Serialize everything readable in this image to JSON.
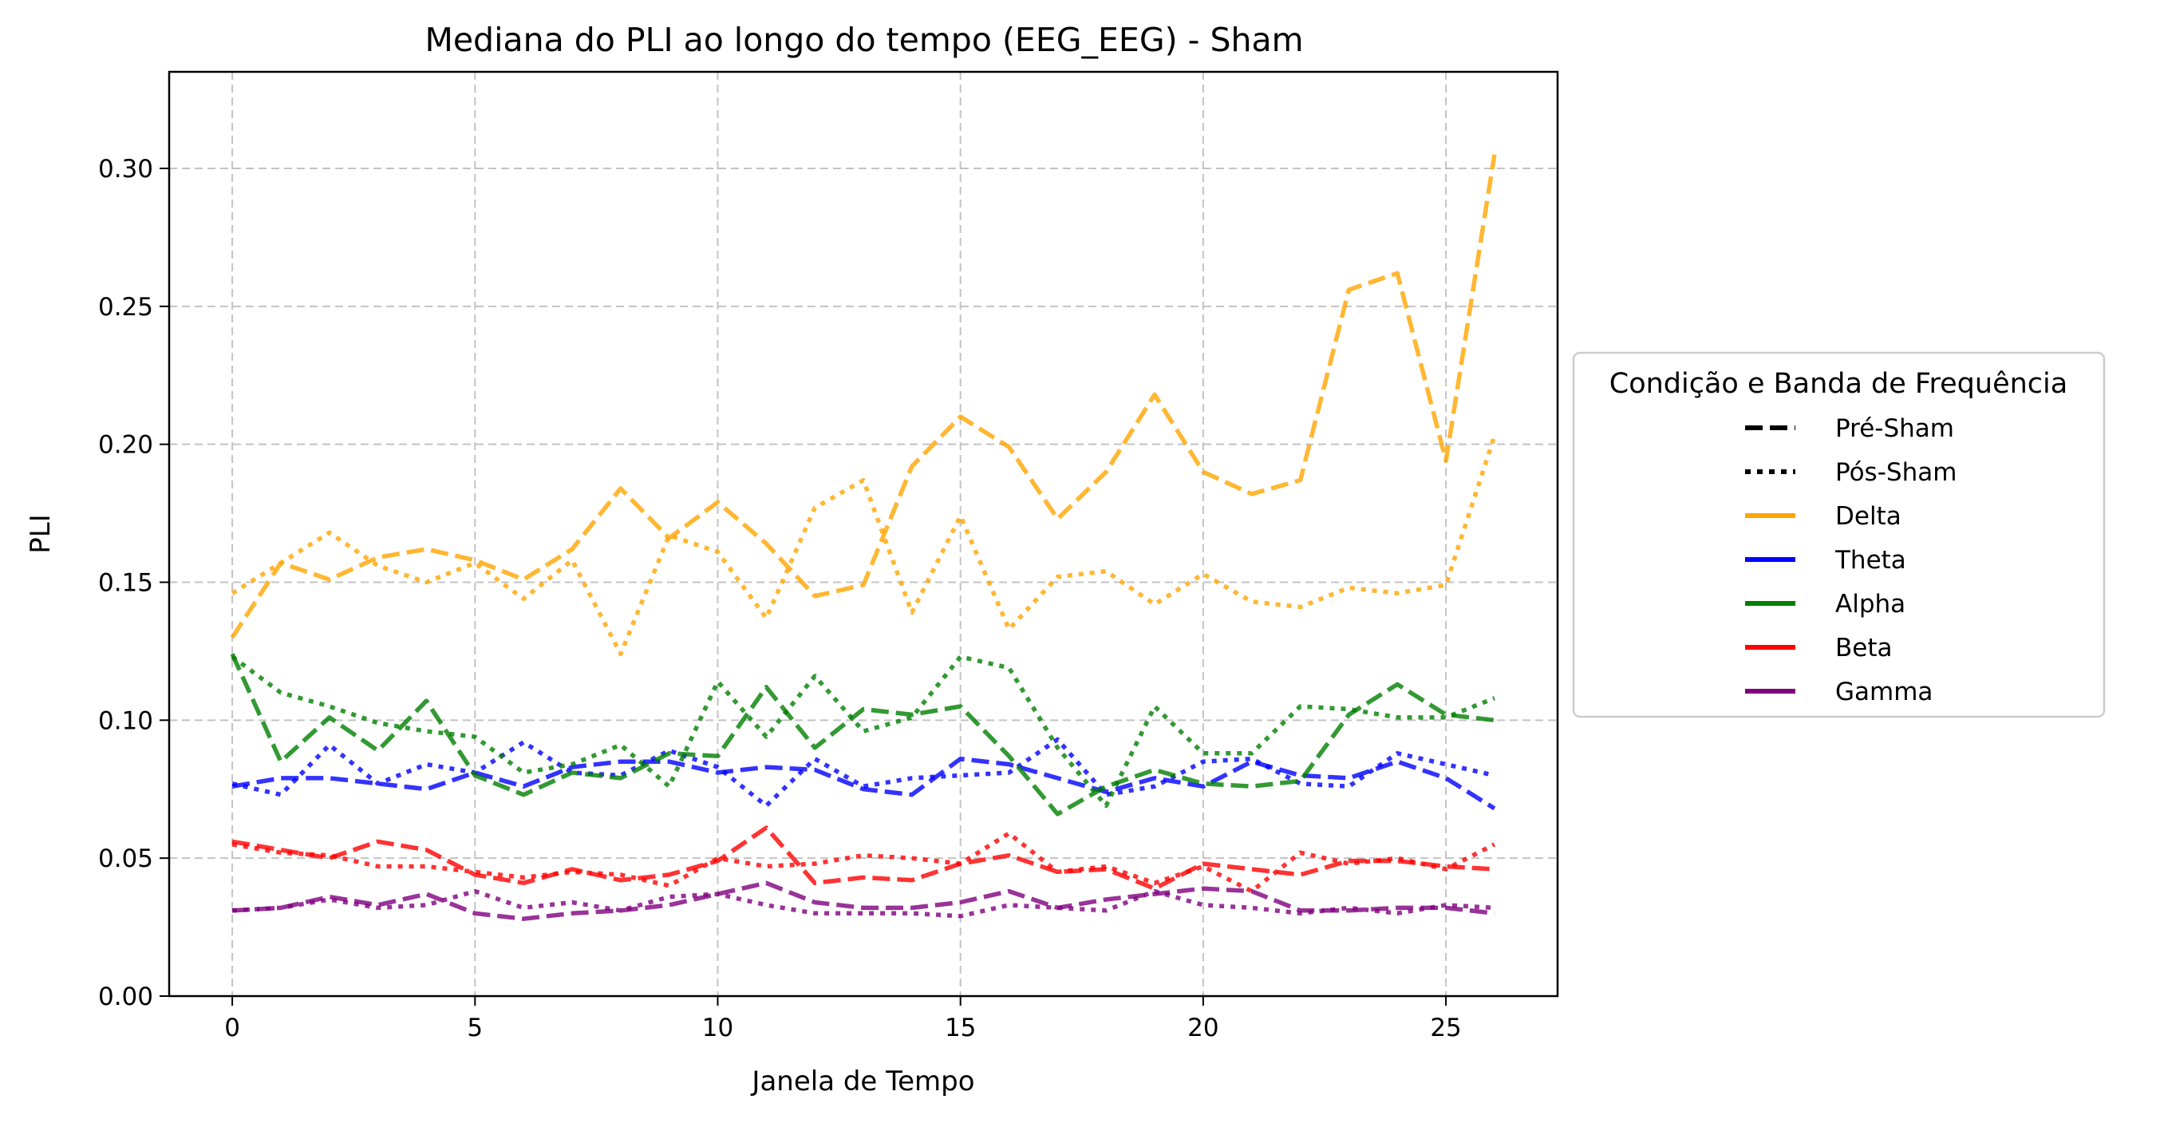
{
  "chart_data": {
    "type": "line",
    "title": "Mediana do PLI ao longo do tempo (EEG_EEG) - Sham",
    "xlabel": "Janela de Tempo",
    "ylabel": "PLI",
    "xlim": [
      -1.3,
      27.3
    ],
    "ylim": [
      0,
      0.335
    ],
    "xticks": [
      0,
      5,
      10,
      15,
      20,
      25
    ],
    "yticks": [
      0,
      0.05,
      0.1,
      0.15,
      0.2,
      0.25,
      0.3
    ],
    "ytick_labels": [
      "0.00",
      "0.05",
      "0.10",
      "0.15",
      "0.20",
      "0.25",
      "0.30"
    ],
    "grid": true,
    "legend": {
      "title": "Condição e Banda de Frequência",
      "placement": "outside-right",
      "entries": [
        {
          "label": "Pré-Sham",
          "style": "dashed",
          "color": "#000000"
        },
        {
          "label": "Pós-Sham",
          "style": "dotted",
          "color": "#000000"
        },
        {
          "label": "Delta",
          "style": "solid",
          "color": "#ffa500"
        },
        {
          "label": "Theta",
          "style": "solid",
          "color": "#0000ff"
        },
        {
          "label": "Alpha",
          "style": "solid",
          "color": "#008000"
        },
        {
          "label": "Beta",
          "style": "solid",
          "color": "#ff0000"
        },
        {
          "label": "Gamma",
          "style": "solid",
          "color": "#800080"
        }
      ]
    },
    "x": [
      0,
      1,
      2,
      3,
      4,
      5,
      6,
      7,
      8,
      9,
      10,
      11,
      12,
      13,
      14,
      15,
      16,
      17,
      18,
      19,
      20,
      21,
      22,
      23,
      24,
      25,
      26
    ],
    "series": [
      {
        "band": "Delta",
        "condition": "Pré-Sham",
        "style": "dashed",
        "color": "#ffa500",
        "values": [
          0.13,
          0.157,
          0.151,
          0.159,
          0.162,
          0.158,
          0.151,
          0.162,
          0.184,
          0.166,
          0.179,
          0.164,
          0.145,
          0.149,
          0.192,
          0.21,
          0.199,
          0.173,
          0.19,
          0.218,
          0.19,
          0.182,
          0.187,
          0.256,
          0.262,
          0.194,
          0.305
        ]
      },
      {
        "band": "Delta",
        "condition": "Pós-Sham",
        "style": "dotted",
        "color": "#ffa500",
        "values": [
          0.146,
          0.157,
          0.168,
          0.156,
          0.15,
          0.157,
          0.144,
          0.158,
          0.124,
          0.167,
          0.161,
          0.137,
          0.177,
          0.187,
          0.139,
          0.174,
          0.133,
          0.152,
          0.154,
          0.142,
          0.153,
          0.143,
          0.141,
          0.148,
          0.146,
          0.149,
          0.203
        ]
      },
      {
        "band": "Theta",
        "condition": "Pré-Sham",
        "style": "dashed",
        "color": "#0000ff",
        "values": [
          0.076,
          0.079,
          0.079,
          0.077,
          0.075,
          0.081,
          0.076,
          0.083,
          0.085,
          0.085,
          0.081,
          0.083,
          0.082,
          0.075,
          0.073,
          0.086,
          0.084,
          0.079,
          0.074,
          0.079,
          0.076,
          0.085,
          0.08,
          0.079,
          0.085,
          0.079,
          0.068
        ]
      },
      {
        "band": "Theta",
        "condition": "Pós-Sham",
        "style": "dotted",
        "color": "#0000ff",
        "values": [
          0.077,
          0.073,
          0.091,
          0.077,
          0.084,
          0.081,
          0.092,
          0.081,
          0.08,
          0.089,
          0.083,
          0.069,
          0.086,
          0.076,
          0.079,
          0.08,
          0.081,
          0.093,
          0.073,
          0.076,
          0.085,
          0.086,
          0.077,
          0.076,
          0.088,
          0.084,
          0.08
        ]
      },
      {
        "band": "Alpha",
        "condition": "Pré-Sham",
        "style": "dashed",
        "color": "#008000",
        "values": [
          0.124,
          0.085,
          0.101,
          0.089,
          0.107,
          0.08,
          0.073,
          0.081,
          0.079,
          0.088,
          0.087,
          0.112,
          0.09,
          0.104,
          0.102,
          0.105,
          0.087,
          0.066,
          0.076,
          0.082,
          0.077,
          0.076,
          0.078,
          0.102,
          0.113,
          0.102,
          0.1
        ]
      },
      {
        "band": "Alpha",
        "condition": "Pós-Sham",
        "style": "dotted",
        "color": "#008000",
        "values": [
          0.123,
          0.11,
          0.105,
          0.099,
          0.096,
          0.094,
          0.081,
          0.084,
          0.091,
          0.076,
          0.114,
          0.094,
          0.116,
          0.096,
          0.101,
          0.123,
          0.119,
          0.09,
          0.069,
          0.105,
          0.088,
          0.088,
          0.105,
          0.104,
          0.101,
          0.101,
          0.108
        ]
      },
      {
        "band": "Beta",
        "condition": "Pré-Sham",
        "style": "dashed",
        "color": "#ff0000",
        "values": [
          0.056,
          0.053,
          0.05,
          0.056,
          0.053,
          0.044,
          0.041,
          0.046,
          0.042,
          0.044,
          0.049,
          0.061,
          0.041,
          0.043,
          0.042,
          0.048,
          0.051,
          0.045,
          0.046,
          0.039,
          0.048,
          0.046,
          0.044,
          0.049,
          0.049,
          0.047,
          0.046
        ]
      },
      {
        "band": "Beta",
        "condition": "Pós-Sham",
        "style": "dotted",
        "color": "#ff0000",
        "values": [
          0.055,
          0.052,
          0.051,
          0.047,
          0.047,
          0.045,
          0.043,
          0.045,
          0.044,
          0.04,
          0.05,
          0.047,
          0.048,
          0.051,
          0.05,
          0.048,
          0.059,
          0.045,
          0.047,
          0.041,
          0.047,
          0.038,
          0.052,
          0.048,
          0.05,
          0.046,
          0.055
        ]
      },
      {
        "band": "Gamma",
        "condition": "Pré-Sham",
        "style": "dashed",
        "color": "#800080",
        "values": [
          0.031,
          0.032,
          0.036,
          0.033,
          0.037,
          0.03,
          0.028,
          0.03,
          0.031,
          0.033,
          0.037,
          0.041,
          0.034,
          0.032,
          0.032,
          0.034,
          0.038,
          0.032,
          0.035,
          0.037,
          0.039,
          0.038,
          0.031,
          0.031,
          0.032,
          0.032,
          0.03
        ]
      },
      {
        "band": "Gamma",
        "condition": "Pós-Sham",
        "style": "dotted",
        "color": "#800080",
        "values": [
          0.031,
          0.032,
          0.035,
          0.032,
          0.033,
          0.038,
          0.032,
          0.034,
          0.031,
          0.036,
          0.037,
          0.033,
          0.03,
          0.03,
          0.03,
          0.029,
          0.033,
          0.032,
          0.031,
          0.038,
          0.033,
          0.032,
          0.03,
          0.032,
          0.03,
          0.033,
          0.032
        ]
      }
    ]
  }
}
